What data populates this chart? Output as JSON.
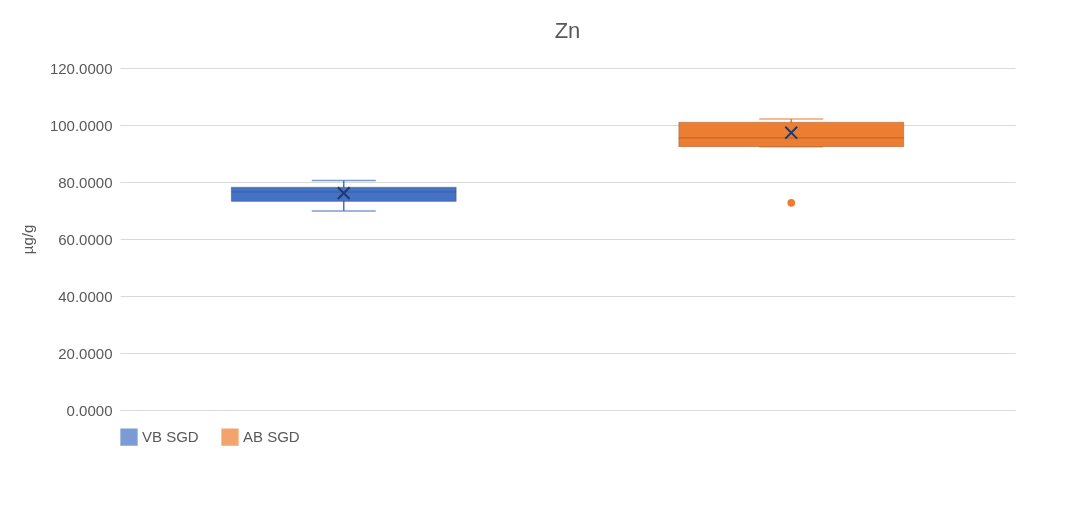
{
  "chart_data": {
    "type": "box",
    "title": "Zn",
    "ylabel": "µg/g",
    "categories": [
      null
    ],
    "ylim": [
      0,
      120
    ],
    "yticks": [
      {
        "value": 0,
        "label": "0.0000"
      },
      {
        "value": 20,
        "label": "20.0000"
      },
      {
        "value": 40,
        "label": "40.0000"
      },
      {
        "value": 60,
        "label": "60.0000"
      },
      {
        "value": 80,
        "label": "80.0000"
      },
      {
        "value": 100,
        "label": "100.0000"
      },
      {
        "value": 120,
        "label": "120.0000"
      }
    ],
    "grid": "y",
    "legend": "bottom",
    "series": [
      {
        "name": "VB SGD",
        "color": "#4472c4",
        "boxes": [
          {
            "low": 69.8,
            "q1": 73.2,
            "median": 76.5,
            "q3": 78.2,
            "high": 80.5,
            "mean": 76.1
          }
        ]
      },
      {
        "name": "AB SGD",
        "color": "#ed7d31",
        "boxes": [
          {
            "low": 92.4,
            "q1": 92.4,
            "median": 95.5,
            "q3": 101,
            "high": 102.1,
            "mean": 97.3,
            "outliers": [
              72.7
            ]
          }
        ]
      }
    ]
  }
}
